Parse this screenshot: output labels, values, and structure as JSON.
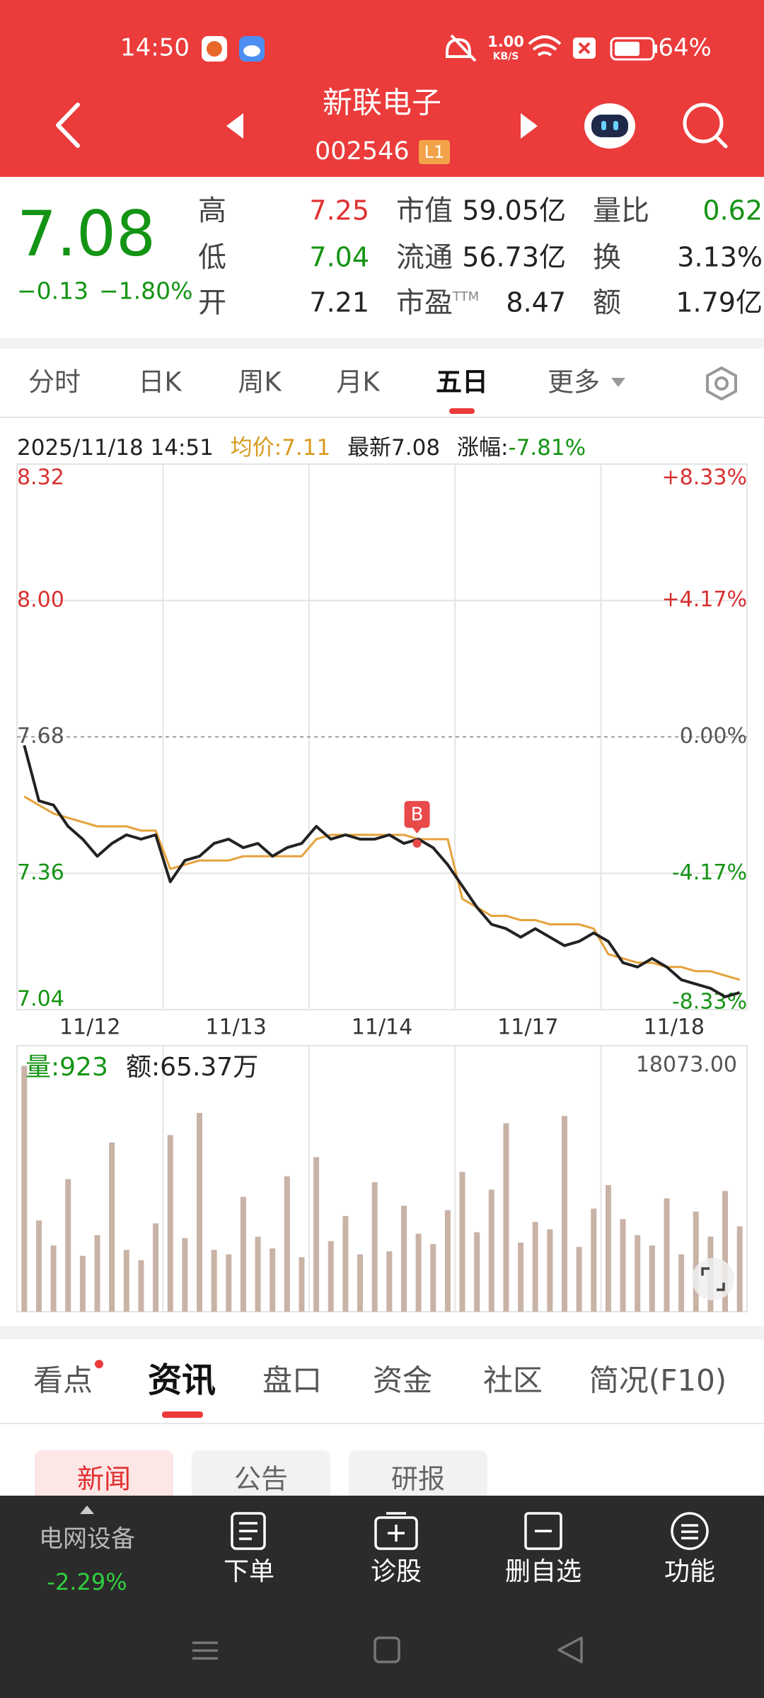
{
  "status_bar": {
    "time": "14:50",
    "net_speed": "1.00",
    "net_unit": "KB/S",
    "battery": "64%"
  },
  "header": {
    "name": "新联电子",
    "code": "002546",
    "level": "L1"
  },
  "quote": {
    "price": "7.08",
    "change": "−0.13",
    "change_pct": "−1.80%",
    "stats": [
      [
        {
          "label": "高",
          "value": "7.25"
        },
        {
          "label": "市值",
          "value": "59.05亿"
        },
        {
          "label": "量比",
          "value": "0.62"
        }
      ],
      [
        {
          "label": "低",
          "value": "7.04"
        },
        {
          "label": "流通",
          "value": "56.73亿"
        },
        {
          "label": "换",
          "value": "3.13%"
        }
      ],
      [
        {
          "label": "开",
          "value": "7.21"
        },
        {
          "label": "市盈",
          "label_sup": "TTM",
          "value": "8.47"
        },
        {
          "label": "额",
          "value": "1.79亿"
        }
      ]
    ]
  },
  "period_tabs": [
    "分时",
    "日K",
    "周K",
    "月K",
    "五日",
    "更多"
  ],
  "chart_info": {
    "time": "2025/11/18 14:51",
    "avg": "均价:7.11",
    "latest": "最新7.08",
    "change_label": "涨幅:",
    "change_value": "-7.81%"
  },
  "chart_data": [
    {
      "type": "line",
      "x": [
        0.05,
        0.15,
        0.25,
        0.35,
        0.45,
        0.55,
        0.65,
        0.75,
        0.85,
        0.95,
        1.05,
        1.15,
        1.25,
        1.35,
        1.45,
        1.55,
        1.65,
        1.75,
        1.85,
        1.95,
        2.05,
        2.15,
        2.25,
        2.35,
        2.45,
        2.55,
        2.65,
        2.75,
        2.85,
        2.95,
        3.05,
        3.15,
        3.25,
        3.35,
        3.45,
        3.55,
        3.65,
        3.75,
        3.85,
        3.95,
        4.05,
        4.15,
        4.25,
        4.35,
        4.45,
        4.55,
        4.65,
        4.75,
        4.85,
        4.95
      ],
      "xlim": [
        0,
        5
      ],
      "xticks": [
        {
          "value": 0.5,
          "label": "11/12"
        },
        {
          "value": 1.5,
          "label": "11/13"
        },
        {
          "value": 2.5,
          "label": "11/14"
        },
        {
          "value": 3.5,
          "label": "11/17"
        },
        {
          "value": 4.5,
          "label": "11/18"
        }
      ],
      "ylim": [
        7.04,
        8.32
      ],
      "yticks": [
        8.32,
        {
          "value": 8,
          "label": "8.00"
        },
        7.68,
        7.36,
        7.04
      ],
      "y2lim": [
        -8.33,
        8.33
      ],
      "y2ticks": [
        {
          "value": 8.33,
          "label": "+8.33%"
        },
        {
          "value": 4.17,
          "label": "+4.17%"
        },
        {
          "value": 0,
          "label": "0.00%"
        },
        {
          "value": -4.17,
          "label": "-4.17%"
        },
        {
          "value": -8.33,
          "label": "-8.33%"
        }
      ],
      "grid": true,
      "series": [
        {
          "color": "#222222",
          "values": [
            7.66,
            7.53,
            7.52,
            7.47,
            7.44,
            7.4,
            7.43,
            7.45,
            7.44,
            7.45,
            7.34,
            7.39,
            7.4,
            7.43,
            7.44,
            7.42,
            7.43,
            7.4,
            7.42,
            7.43,
            7.47,
            7.44,
            7.45,
            7.44,
            7.44,
            7.45,
            7.43,
            7.44,
            7.42,
            7.38,
            7.33,
            7.28,
            7.24,
            7.23,
            7.21,
            7.23,
            7.21,
            7.19,
            7.2,
            7.22,
            7.2,
            7.15,
            7.14,
            7.16,
            7.14,
            7.11,
            7.1,
            7.09,
            7.07,
            7.08
          ]
        },
        {
          "color": "#e6a23c",
          "values": [
            7.54,
            7.52,
            7.5,
            7.49,
            7.48,
            7.47,
            7.47,
            7.47,
            7.46,
            7.46,
            7.37,
            7.38,
            7.39,
            7.39,
            7.39,
            7.4,
            7.4,
            7.4,
            7.4,
            7.4,
            7.44,
            7.45,
            7.45,
            7.45,
            7.45,
            7.45,
            7.45,
            7.44,
            7.44,
            7.44,
            7.3,
            7.28,
            7.26,
            7.26,
            7.25,
            7.25,
            7.24,
            7.24,
            7.24,
            7.23,
            7.17,
            7.16,
            7.15,
            7.15,
            7.14,
            7.14,
            7.13,
            7.13,
            7.12,
            7.11
          ]
        }
      ],
      "marker": {
        "label": "B",
        "x": 2.74,
        "y": 7.43,
        "color": "#e84a4a"
      }
    },
    {
      "type": "bar",
      "title": "量:923",
      "subtitle": "额:65.37万",
      "x": [
        0.05,
        0.15,
        0.25,
        0.35,
        0.45,
        0.55,
        0.65,
        0.75,
        0.85,
        0.95,
        1.05,
        1.15,
        1.25,
        1.35,
        1.45,
        1.55,
        1.65,
        1.75,
        1.85,
        1.95,
        2.05,
        2.15,
        2.25,
        2.35,
        2.45,
        2.55,
        2.65,
        2.75,
        2.85,
        2.95,
        3.05,
        3.15,
        3.25,
        3.35,
        3.45,
        3.55,
        3.65,
        3.75,
        3.85,
        3.95,
        4.05,
        4.15,
        4.25,
        4.35,
        4.45,
        4.55,
        4.65,
        4.75,
        4.85,
        4.95
      ],
      "xlim": [
        0,
        5
      ],
      "ylim": [
        0,
        18073
      ],
      "yticks": [
        {
          "value": 18073,
          "label": "18073.00"
        }
      ],
      "color": "#c9b3a6",
      "values": [
        16700,
        6200,
        4500,
        9000,
        3800,
        5200,
        11500,
        4200,
        3500,
        6000,
        12000,
        5000,
        13500,
        4200,
        3900,
        7800,
        5100,
        4300,
        9200,
        3700,
        10500,
        4800,
        6500,
        3900,
        8800,
        4100,
        7200,
        5300,
        4600,
        6900,
        9500,
        5400,
        8300,
        12800,
        4700,
        6100,
        5600,
        13300,
        4400,
        7000,
        8600,
        6300,
        5200,
        4500,
        7700,
        3900,
        6800,
        5100,
        8200,
        5800
      ]
    }
  ],
  "news_tabs": [
    "看点",
    "资讯",
    "盘口",
    "资金",
    "社区",
    "简况(F10)"
  ],
  "news_filters": [
    "新闻",
    "公告",
    "研报"
  ],
  "bottom_bar": {
    "sector": "电网设备",
    "sector_change": "-2.29%",
    "actions": [
      "下单",
      "诊股",
      "删自选",
      "功能"
    ]
  }
}
